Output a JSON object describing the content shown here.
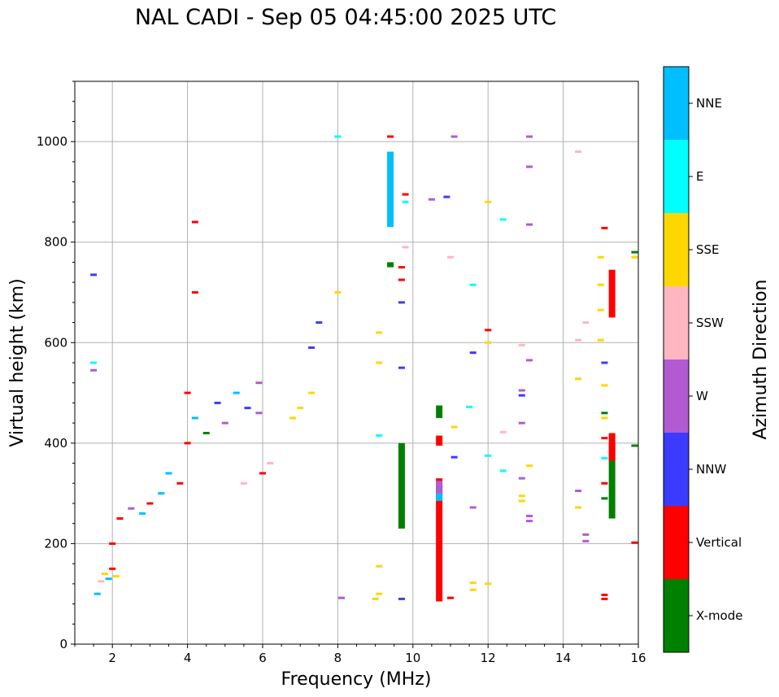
{
  "title": "NAL CADI - Sep 05 04:45:00 2025 UTC",
  "chart_data": {
    "type": "scatter",
    "title": "NAL CADI - Sep 05 04:45:00 2025 UTC",
    "xlabel": "Frequency (MHz)",
    "ylabel": "Virtual height (km)",
    "xlim": [
      1,
      16
    ],
    "ylim": [
      0,
      1120
    ],
    "xticks": [
      2,
      4,
      6,
      8,
      10,
      12,
      14,
      16
    ],
    "yticks": [
      0,
      200,
      400,
      600,
      800,
      1000
    ],
    "grid": true,
    "colorbar": {
      "label": "Azimuth Direction",
      "categories": [
        {
          "name": "X-mode",
          "color": "#008000"
        },
        {
          "name": "Vertical",
          "color": "#ff0000"
        },
        {
          "name": "NNW",
          "color": "#3b3bff"
        },
        {
          "name": "W",
          "color": "#b25ad2"
        },
        {
          "name": "SSW",
          "color": "#ffb6c1"
        },
        {
          "name": "SSE",
          "color": "#ffd700"
        },
        {
          "name": "E",
          "color": "#00ffff"
        },
        {
          "name": "NNE",
          "color": "#00bfff"
        }
      ]
    },
    "segments": [
      {
        "f": 9.7,
        "h1": 230,
        "h2": 400,
        "cat": "X-mode"
      },
      {
        "f": 15.3,
        "h1": 250,
        "h2": 400,
        "cat": "X-mode"
      },
      {
        "f": 10.7,
        "h1": 450,
        "h2": 475,
        "cat": "X-mode"
      },
      {
        "f": 9.4,
        "h1": 750,
        "h2": 760,
        "cat": "X-mode"
      },
      {
        "f": 15.3,
        "h1": 650,
        "h2": 745,
        "cat": "Vertical"
      },
      {
        "f": 15.3,
        "h1": 365,
        "h2": 420,
        "cat": "Vertical"
      },
      {
        "f": 10.7,
        "h1": 85,
        "h2": 330,
        "cat": "Vertical"
      },
      {
        "f": 10.7,
        "h1": 395,
        "h2": 415,
        "cat": "Vertical"
      },
      {
        "f": 10.7,
        "h1": 295,
        "h2": 325,
        "cat": "W"
      },
      {
        "f": 10.7,
        "h1": 285,
        "h2": 300,
        "cat": "NNE"
      },
      {
        "f": 9.4,
        "h1": 830,
        "h2": 980,
        "cat": "NNE"
      }
    ],
    "points": [
      {
        "f": 1.8,
        "h": 140,
        "cat": "SSE"
      },
      {
        "f": 1.9,
        "h": 130,
        "cat": "NNE"
      },
      {
        "f": 2.0,
        "h": 150,
        "cat": "Vertical"
      },
      {
        "f": 1.7,
        "h": 125,
        "cat": "SSW"
      },
      {
        "f": 2.1,
        "h": 135,
        "cat": "SSE"
      },
      {
        "f": 1.6,
        "h": 100,
        "cat": "NNE"
      },
      {
        "f": 2.0,
        "h": 200,
        "cat": "Vertical"
      },
      {
        "f": 2.2,
        "h": 250,
        "cat": "Vertical"
      },
      {
        "f": 2.5,
        "h": 270,
        "cat": "W"
      },
      {
        "f": 2.8,
        "h": 260,
        "cat": "NNE"
      },
      {
        "f": 3.0,
        "h": 280,
        "cat": "Vertical"
      },
      {
        "f": 3.3,
        "h": 300,
        "cat": "NNE"
      },
      {
        "f": 3.5,
        "h": 340,
        "cat": "NNE"
      },
      {
        "f": 3.8,
        "h": 320,
        "cat": "Vertical"
      },
      {
        "f": 4.0,
        "h": 400,
        "cat": "Vertical"
      },
      {
        "f": 4.0,
        "h": 500,
        "cat": "Vertical"
      },
      {
        "f": 4.2,
        "h": 450,
        "cat": "NNE"
      },
      {
        "f": 4.5,
        "h": 420,
        "cat": "X-mode"
      },
      {
        "f": 4.8,
        "h": 480,
        "cat": "NNW"
      },
      {
        "f": 5.0,
        "h": 440,
        "cat": "W"
      },
      {
        "f": 5.3,
        "h": 500,
        "cat": "NNE"
      },
      {
        "f": 5.6,
        "h": 470,
        "cat": "NNW"
      },
      {
        "f": 5.9,
        "h": 460,
        "cat": "W"
      },
      {
        "f": 5.9,
        "h": 520,
        "cat": "W"
      },
      {
        "f": 5.5,
        "h": 320,
        "cat": "SSW"
      },
      {
        "f": 6.0,
        "h": 340,
        "cat": "Vertical"
      },
      {
        "f": 6.2,
        "h": 360,
        "cat": "SSW"
      },
      {
        "f": 6.8,
        "h": 450,
        "cat": "SSE"
      },
      {
        "f": 7.0,
        "h": 470,
        "cat": "SSE"
      },
      {
        "f": 7.3,
        "h": 500,
        "cat": "SSE"
      },
      {
        "f": 7.3,
        "h": 590,
        "cat": "NNW"
      },
      {
        "f": 7.5,
        "h": 640,
        "cat": "NNW"
      },
      {
        "f": 8.0,
        "h": 700,
        "cat": "SSE"
      },
      {
        "f": 8.0,
        "h": 1010,
        "cat": "E"
      },
      {
        "f": 4.2,
        "h": 840,
        "cat": "Vertical"
      },
      {
        "f": 4.2,
        "h": 700,
        "cat": "Vertical"
      },
      {
        "f": 1.5,
        "h": 735,
        "cat": "NNW"
      },
      {
        "f": 9.4,
        "h": 1010,
        "cat": "Vertical"
      },
      {
        "f": 11.1,
        "h": 1010,
        "cat": "W"
      },
      {
        "f": 13.1,
        "h": 1010,
        "cat": "W"
      },
      {
        "f": 14.4,
        "h": 980,
        "cat": "SSW"
      },
      {
        "f": 13.1,
        "h": 950,
        "cat": "W"
      },
      {
        "f": 12.0,
        "h": 880,
        "cat": "SSE"
      },
      {
        "f": 12.4,
        "h": 845,
        "cat": "E"
      },
      {
        "f": 13.1,
        "h": 835,
        "cat": "W"
      },
      {
        "f": 15.1,
        "h": 828,
        "cat": "Vertical"
      },
      {
        "f": 15.9,
        "h": 780,
        "cat": "X-mode"
      },
      {
        "f": 15.9,
        "h": 770,
        "cat": "SSE"
      },
      {
        "f": 15.0,
        "h": 770,
        "cat": "SSE"
      },
      {
        "f": 11.0,
        "h": 770,
        "cat": "SSW"
      },
      {
        "f": 11.6,
        "h": 715,
        "cat": "E"
      },
      {
        "f": 15.0,
        "h": 715,
        "cat": "SSE"
      },
      {
        "f": 15.0,
        "h": 665,
        "cat": "SSE"
      },
      {
        "f": 14.6,
        "h": 640,
        "cat": "SSW"
      },
      {
        "f": 12.0,
        "h": 625,
        "cat": "Vertical"
      },
      {
        "f": 14.4,
        "h": 605,
        "cat": "SSW"
      },
      {
        "f": 15.0,
        "h": 605,
        "cat": "SSE"
      },
      {
        "f": 12.9,
        "h": 595,
        "cat": "SSW"
      },
      {
        "f": 11.6,
        "h": 580,
        "cat": "NNW"
      },
      {
        "f": 13.1,
        "h": 565,
        "cat": "W"
      },
      {
        "f": 15.1,
        "h": 560,
        "cat": "NNW"
      },
      {
        "f": 14.4,
        "h": 528,
        "cat": "SSE"
      },
      {
        "f": 15.1,
        "h": 515,
        "cat": "SSE"
      },
      {
        "f": 12.9,
        "h": 505,
        "cat": "W"
      },
      {
        "f": 12.9,
        "h": 495,
        "cat": "NNW"
      },
      {
        "f": 15.1,
        "h": 460,
        "cat": "X-mode"
      },
      {
        "f": 15.1,
        "h": 450,
        "cat": "SSE"
      },
      {
        "f": 12.9,
        "h": 440,
        "cat": "W"
      },
      {
        "f": 12.4,
        "h": 422,
        "cat": "SSW"
      },
      {
        "f": 15.1,
        "h": 410,
        "cat": "Vertical"
      },
      {
        "f": 15.9,
        "h": 395,
        "cat": "X-mode"
      },
      {
        "f": 12.0,
        "h": 375,
        "cat": "E"
      },
      {
        "f": 15.1,
        "h": 370,
        "cat": "E"
      },
      {
        "f": 13.1,
        "h": 355,
        "cat": "SSE"
      },
      {
        "f": 12.4,
        "h": 345,
        "cat": "E"
      },
      {
        "f": 12.9,
        "h": 330,
        "cat": "W"
      },
      {
        "f": 15.1,
        "h": 320,
        "cat": "Vertical"
      },
      {
        "f": 14.4,
        "h": 305,
        "cat": "W"
      },
      {
        "f": 12.9,
        "h": 295,
        "cat": "SSE"
      },
      {
        "f": 15.1,
        "h": 290,
        "cat": "X-mode"
      },
      {
        "f": 12.9,
        "h": 285,
        "cat": "SSE"
      },
      {
        "f": 14.4,
        "h": 272,
        "cat": "SSE"
      },
      {
        "f": 11.6,
        "h": 272,
        "cat": "W"
      },
      {
        "f": 13.1,
        "h": 255,
        "cat": "W"
      },
      {
        "f": 13.1,
        "h": 245,
        "cat": "W"
      },
      {
        "f": 14.6,
        "h": 218,
        "cat": "W"
      },
      {
        "f": 14.6,
        "h": 205,
        "cat": "W"
      },
      {
        "f": 15.9,
        "h": 202,
        "cat": "Vertical"
      },
      {
        "f": 11.6,
        "h": 122,
        "cat": "SSE"
      },
      {
        "f": 12.0,
        "h": 120,
        "cat": "SSE"
      },
      {
        "f": 11.6,
        "h": 108,
        "cat": "SSE"
      },
      {
        "f": 15.1,
        "h": 98,
        "cat": "Vertical"
      },
      {
        "f": 15.1,
        "h": 90,
        "cat": "Vertical"
      },
      {
        "f": 11.0,
        "h": 92,
        "cat": "Vertical"
      },
      {
        "f": 9.1,
        "h": 100,
        "cat": "SSE"
      },
      {
        "f": 9.0,
        "h": 90,
        "cat": "SSE"
      },
      {
        "f": 9.1,
        "h": 155,
        "cat": "SSE"
      },
      {
        "f": 9.7,
        "h": 90,
        "cat": "NNW"
      },
      {
        "f": 8.1,
        "h": 92,
        "cat": "W"
      },
      {
        "f": 9.1,
        "h": 415,
        "cat": "E"
      },
      {
        "f": 9.1,
        "h": 560,
        "cat": "SSE"
      },
      {
        "f": 9.1,
        "h": 620,
        "cat": "SSE"
      },
      {
        "f": 9.7,
        "h": 550,
        "cat": "NNW"
      },
      {
        "f": 9.7,
        "h": 680,
        "cat": "NNW"
      },
      {
        "f": 9.7,
        "h": 725,
        "cat": "Vertical"
      },
      {
        "f": 9.7,
        "h": 750,
        "cat": "Vertical"
      },
      {
        "f": 9.8,
        "h": 880,
        "cat": "E"
      },
      {
        "f": 9.8,
        "h": 895,
        "cat": "Vertical"
      },
      {
        "f": 10.5,
        "h": 885,
        "cat": "W"
      },
      {
        "f": 10.9,
        "h": 890,
        "cat": "NNW"
      },
      {
        "f": 11.1,
        "h": 432,
        "cat": "SSE"
      },
      {
        "f": 11.1,
        "h": 372,
        "cat": "NNW"
      },
      {
        "f": 11.5,
        "h": 472,
        "cat": "E"
      },
      {
        "f": 1.5,
        "h": 560,
        "cat": "E"
      },
      {
        "f": 1.5,
        "h": 545,
        "cat": "W"
      },
      {
        "f": 9.8,
        "h": 790,
        "cat": "SSW"
      },
      {
        "f": 12.0,
        "h": 600,
        "cat": "SSE"
      }
    ]
  }
}
